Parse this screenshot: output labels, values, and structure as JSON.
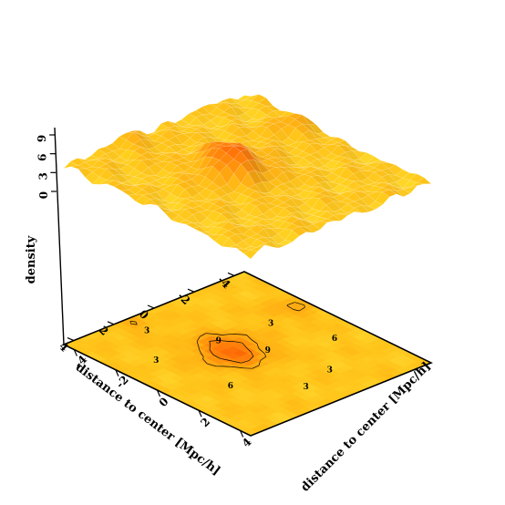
{
  "chart_data": {
    "type": "surface",
    "zlabel": "density",
    "xlabel": "distance to center [Mpc/h]",
    "ylabel": "distance to center [Mpc/h]",
    "x_ticks": [
      "-4",
      "-2",
      "0",
      "2",
      "4"
    ],
    "y_ticks": [
      "-4",
      "-2",
      "0",
      "2",
      "4"
    ],
    "z_ticks": [
      "0",
      "3",
      "6",
      "9"
    ],
    "xlim": [
      -4.5,
      4.5
    ],
    "ylim": [
      -4.5,
      4.5
    ],
    "zlim": [
      0,
      10
    ],
    "peak": {
      "x": 0.3,
      "y": -0.5,
      "density": 9.5
    },
    "colormap": [
      "#ffe23a",
      "#ffc41a",
      "#ffa510",
      "#ff7a0a",
      "#ee3a00"
    ],
    "contour_levels": [
      3,
      6,
      9
    ],
    "contour_labels": [
      "3",
      "6",
      "9"
    ],
    "projected_contours": true
  }
}
